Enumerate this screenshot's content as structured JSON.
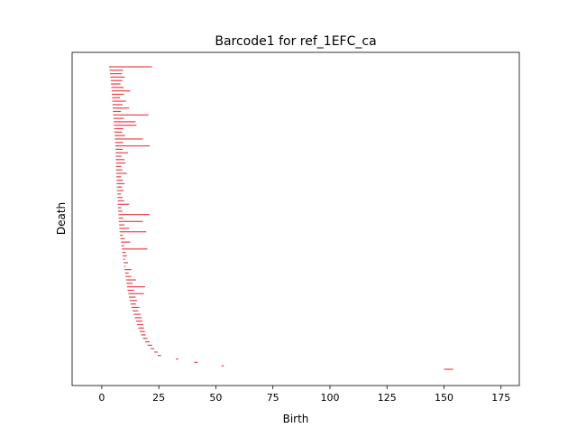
{
  "chart_data": {
    "type": "barcode",
    "title": "Barcode1 for ref_1EFC_ca",
    "xlabel": "Birth",
    "ylabel": "Death",
    "xlim": [
      -13,
      183
    ],
    "x_ticks": [
      0,
      25,
      50,
      75,
      100,
      125,
      150,
      175
    ],
    "y_ticks_visible": false,
    "bar_color": "#e8434a",
    "bars": [
      [
        3.2,
        22.0
      ],
      [
        3.4,
        9.3
      ],
      [
        3.6,
        8.8
      ],
      [
        3.8,
        10.1
      ],
      [
        3.9,
        9.0
      ],
      [
        4.0,
        8.2
      ],
      [
        4.2,
        9.6
      ],
      [
        4.3,
        12.5
      ],
      [
        4.4,
        9.8
      ],
      [
        4.5,
        8.0
      ],
      [
        4.6,
        10.6
      ],
      [
        4.7,
        9.1
      ],
      [
        4.8,
        12.0
      ],
      [
        4.9,
        8.4
      ],
      [
        5.0,
        20.5
      ],
      [
        5.1,
        9.7
      ],
      [
        5.2,
        14.8
      ],
      [
        5.3,
        15.2
      ],
      [
        5.4,
        9.5
      ],
      [
        5.5,
        8.9
      ],
      [
        5.6,
        10.2
      ],
      [
        5.7,
        18.0
      ],
      [
        5.8,
        9.4
      ],
      [
        5.9,
        21.0
      ],
      [
        6.0,
        9.2
      ],
      [
        6.0,
        11.5
      ],
      [
        6.1,
        8.7
      ],
      [
        6.1,
        9.9
      ],
      [
        6.2,
        10.4
      ],
      [
        6.2,
        8.6
      ],
      [
        6.3,
        9.0
      ],
      [
        6.3,
        11.0
      ],
      [
        6.4,
        8.5
      ],
      [
        6.5,
        9.3
      ],
      [
        6.5,
        10.0
      ],
      [
        6.6,
        8.9
      ],
      [
        6.7,
        9.6
      ],
      [
        6.8,
        8.4
      ],
      [
        6.9,
        9.1
      ],
      [
        7.0,
        9.8
      ],
      [
        7.0,
        12.0
      ],
      [
        7.1,
        8.6
      ],
      [
        7.2,
        9.0
      ],
      [
        7.3,
        21.0
      ],
      [
        7.4,
        9.4
      ],
      [
        7.5,
        18.0
      ],
      [
        7.6,
        9.9
      ],
      [
        7.7,
        12.0
      ],
      [
        7.8,
        19.5
      ],
      [
        8.0,
        9.2
      ],
      [
        8.2,
        10.1
      ],
      [
        8.4,
        12.5
      ],
      [
        8.6,
        9.8
      ],
      [
        8.8,
        20.0
      ],
      [
        9.0,
        10.5
      ],
      [
        9.2,
        11.0
      ],
      [
        9.4,
        10.2
      ],
      [
        9.6,
        11.5
      ],
      [
        9.8,
        10.4
      ],
      [
        10.0,
        13.0
      ],
      [
        10.2,
        11.8
      ],
      [
        10.4,
        12.9
      ],
      [
        10.6,
        15.0
      ],
      [
        10.8,
        13.5
      ],
      [
        11.0,
        19.0
      ],
      [
        11.3,
        14.2
      ],
      [
        11.6,
        18.5
      ],
      [
        11.9,
        14.8
      ],
      [
        12.2,
        15.5
      ],
      [
        12.6,
        15.0
      ],
      [
        13.0,
        16.5
      ],
      [
        13.5,
        16.0
      ],
      [
        14.0,
        17.0
      ],
      [
        14.5,
        17.5
      ],
      [
        15.0,
        17.8
      ],
      [
        15.5,
        18.2
      ],
      [
        16.0,
        18.5
      ],
      [
        16.6,
        18.9
      ],
      [
        17.2,
        19.3
      ],
      [
        18.0,
        20.0
      ],
      [
        19.0,
        21.0
      ],
      [
        20.0,
        22.0
      ],
      [
        21.5,
        23.0
      ],
      [
        23.0,
        24.5
      ],
      [
        24.5,
        26.0
      ],
      [
        32.5,
        33.5
      ],
      [
        40.5,
        42.0
      ],
      [
        52.5,
        53.5
      ],
      [
        150.0,
        154.0
      ]
    ]
  }
}
